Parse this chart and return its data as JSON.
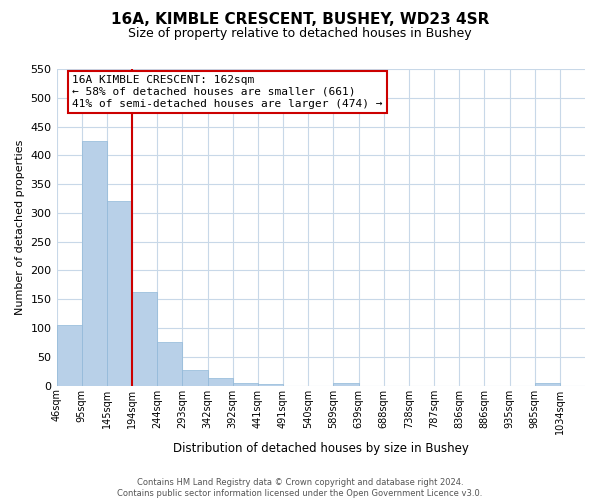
{
  "title": "16A, KIMBLE CRESCENT, BUSHEY, WD23 4SR",
  "subtitle": "Size of property relative to detached houses in Bushey",
  "xlabel": "Distribution of detached houses by size in Bushey",
  "ylabel": "Number of detached properties",
  "bar_values": [
    105,
    425,
    320,
    162,
    75,
    27,
    13,
    5,
    3,
    0,
    0,
    5,
    0,
    0,
    0,
    0,
    0,
    0,
    0,
    4,
    0
  ],
  "bar_labels": [
    "46sqm",
    "95sqm",
    "145sqm",
    "194sqm",
    "244sqm",
    "293sqm",
    "342sqm",
    "392sqm",
    "441sqm",
    "491sqm",
    "540sqm",
    "589sqm",
    "639sqm",
    "688sqm",
    "738sqm",
    "787sqm",
    "836sqm",
    "886sqm",
    "935sqm",
    "985sqm",
    "1034sqm"
  ],
  "bar_color": "#B8D0E8",
  "bar_edge_color": "#90B8D8",
  "vline_color": "#CC0000",
  "ylim": [
    0,
    550
  ],
  "yticks": [
    0,
    50,
    100,
    150,
    200,
    250,
    300,
    350,
    400,
    450,
    500,
    550
  ],
  "annotation_title": "16A KIMBLE CRESCENT: 162sqm",
  "annotation_line1": "← 58% of detached houses are smaller (661)",
  "annotation_line2": "41% of semi-detached houses are larger (474) →",
  "annotation_box_color": "#ffffff",
  "annotation_box_edge": "#CC0000",
  "footer_line1": "Contains HM Land Registry data © Crown copyright and database right 2024.",
  "footer_line2": "Contains public sector information licensed under the Open Government Licence v3.0.",
  "background_color": "#ffffff",
  "grid_color": "#c8d8e8"
}
